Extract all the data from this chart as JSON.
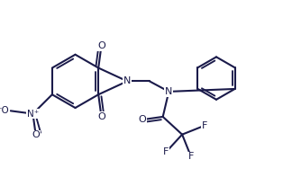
{
  "bg_color": "#ffffff",
  "bond_color": "#1a1a4a",
  "line_width": 1.5,
  "font_size": 8.0,
  "figsize": [
    3.24,
    2.17
  ],
  "dpi": 100,
  "xlim": [
    0,
    9.5
  ],
  "ylim": [
    0,
    6.5
  ]
}
